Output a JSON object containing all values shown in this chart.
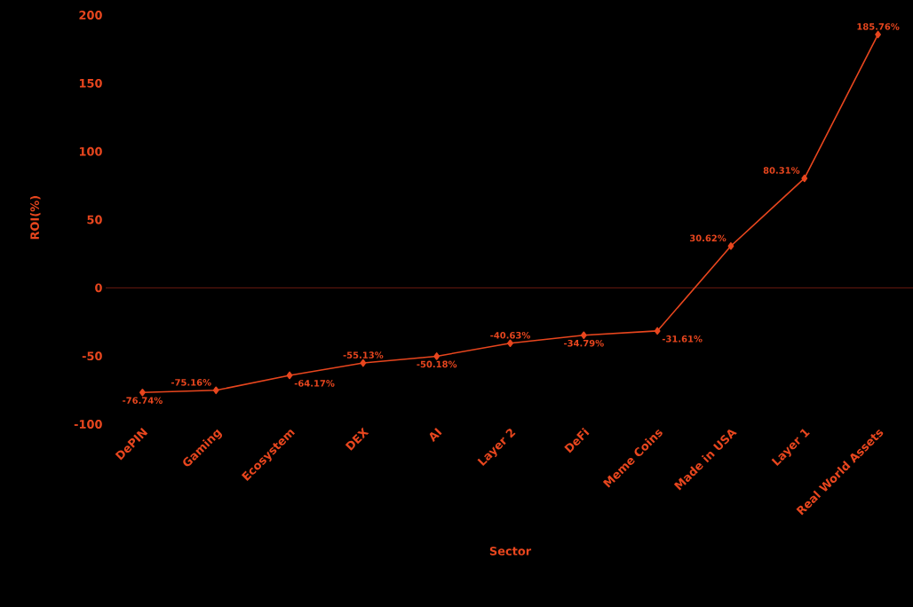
{
  "chart_data": {
    "type": "line",
    "xlabel": "Sector",
    "ylabel": "ROI(%)",
    "categories": [
      "DePIN",
      "Gaming",
      "Ecosystem",
      "DEX",
      "AI",
      "Layer 2",
      "DeFi",
      "Meme Coins",
      "Made in USA",
      "Layer 1",
      "Real World Assets"
    ],
    "values": [
      -76.74,
      -75.16,
      -64.17,
      -55.13,
      -50.18,
      -40.63,
      -34.79,
      -31.61,
      30.62,
      80.31,
      185.76
    ],
    "value_labels": [
      "-76.74%",
      "-75.16%",
      "-64.17%",
      "-55.13%",
      "-50.18%",
      "-40.63%",
      "-34.79%",
      "-31.61%",
      "30.62%",
      "80.31%",
      "185.76%"
    ],
    "color": "#e8461e",
    "marker": "diamond",
    "ylim": [
      -100,
      200
    ],
    "yticks": [
      -100,
      -50,
      0,
      50,
      100,
      150,
      200
    ],
    "ref_lines": [
      {
        "axis": "y",
        "value": 0,
        "color": "#6b1a10"
      }
    ]
  }
}
